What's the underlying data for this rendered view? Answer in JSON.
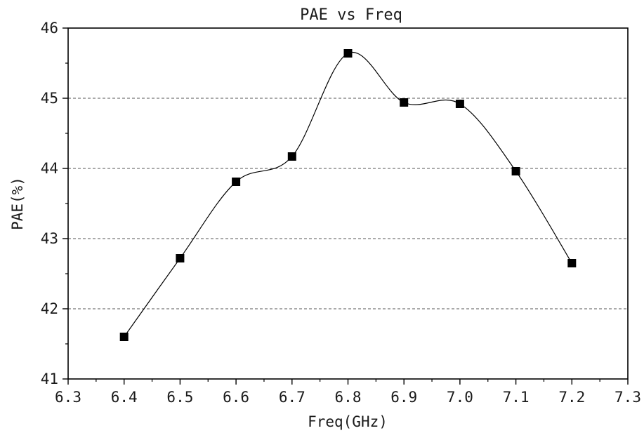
{
  "chart_data": {
    "type": "line",
    "title": "PAE vs Freq",
    "xlabel": "Freq(GHz)",
    "ylabel": "PAE(%)",
    "xlim": [
      6.3,
      7.3
    ],
    "ylim": [
      41,
      46
    ],
    "x_ticks": [
      "6.3",
      "6.4",
      "6.5",
      "6.6",
      "6.7",
      "6.8",
      "6.9",
      "7.0",
      "7.1",
      "7.2",
      "7.3"
    ],
    "y_ticks": [
      "41",
      "42",
      "43",
      "44",
      "45",
      "46"
    ],
    "grid": "horizontal dashed",
    "series": [
      {
        "x": [
          6.4,
          6.5,
          6.6,
          6.7,
          6.8,
          6.9,
          7.0,
          7.1,
          7.2
        ],
        "y": [
          41.6,
          42.72,
          43.81,
          44.17,
          45.64,
          44.94,
          44.92,
          43.96,
          42.65
        ],
        "marker": "square",
        "line": "smooth",
        "color": "#000000"
      }
    ]
  }
}
